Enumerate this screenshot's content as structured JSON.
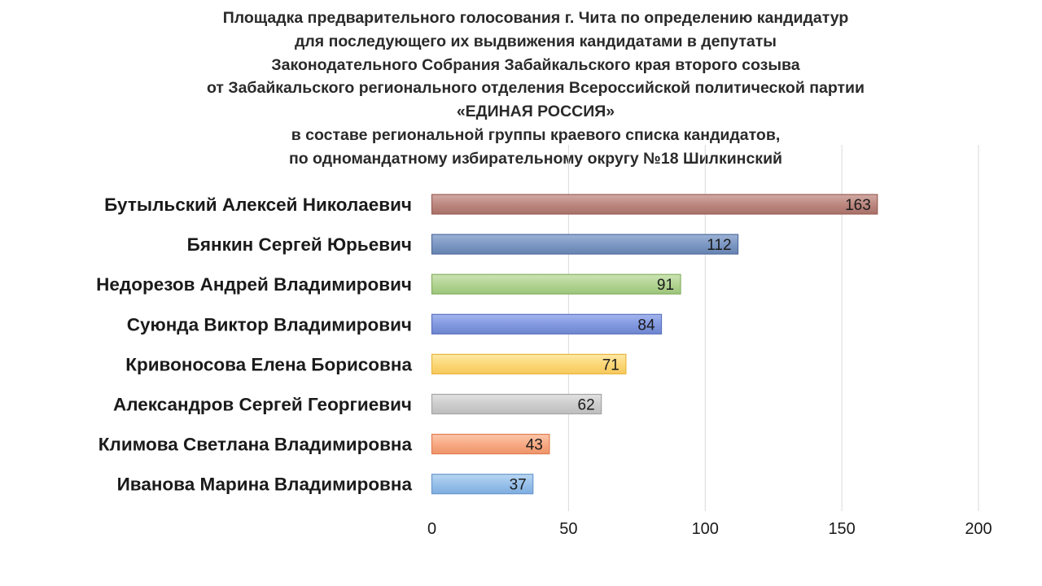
{
  "chart_data": {
    "type": "bar",
    "orientation": "horizontal",
    "title_lines": [
      "Площадка предварительного голосования г. Чита по определению кандидатур",
      "для последующего их выдвижения кандидатами в депутаты",
      "Законодательного Собрания Забайкальского края второго созыва",
      "от Забайкальского регионального отделения Всероссийской политической партии",
      "«ЕДИНАЯ РОССИЯ»",
      "в составе региональной группы краевого списка кандидатов,",
      "по одномандатному избирательному округу  №18 Шилкинский"
    ],
    "categories": [
      "Бутыльский Алексей Николаевич",
      "Бянкин Сергей Юрьевич",
      "Недорезов Андрей Владимирович",
      "Суюнда Виктор Владимирович",
      "Кривоносова Елена Борисовна",
      "Александров Сергей Георгиевич",
      "Климова Светлана Владимировна",
      "Иванова Марина Владимировна"
    ],
    "values": [
      163,
      112,
      91,
      84,
      71,
      62,
      43,
      37
    ],
    "bar_colors": [
      {
        "top": "#d1aaa4",
        "mid": "#bd8880",
        "bottom": "#a87068",
        "border": "#9a5e56"
      },
      {
        "top": "#9db3d6",
        "mid": "#7d98c4",
        "bottom": "#6683b1",
        "border": "#4f6c9c"
      },
      {
        "top": "#cce4b4",
        "mid": "#b2d493",
        "bottom": "#9cc47a",
        "border": "#86b062"
      },
      {
        "top": "#a4b6ef",
        "mid": "#8399e0",
        "bottom": "#6e86cf",
        "border": "#5a72bd"
      },
      {
        "top": "#fde8a6",
        "mid": "#fcd878",
        "bottom": "#f6c95c",
        "border": "#e8b640"
      },
      {
        "top": "#e2e2e2",
        "mid": "#cdcdcd",
        "bottom": "#bdbdbd",
        "border": "#a5a5a5"
      },
      {
        "top": "#fbc8ac",
        "mid": "#f7aa84",
        "bottom": "#ef946a",
        "border": "#e07d52"
      },
      {
        "top": "#b9d6f2",
        "mid": "#98c1ea",
        "bottom": "#80ade0",
        "border": "#6a98cc"
      }
    ],
    "xlim": [
      0,
      200
    ],
    "xticks": [
      0,
      50,
      100,
      150,
      200
    ],
    "grid": "vertical",
    "gridline_color": "#d9d9d9"
  }
}
